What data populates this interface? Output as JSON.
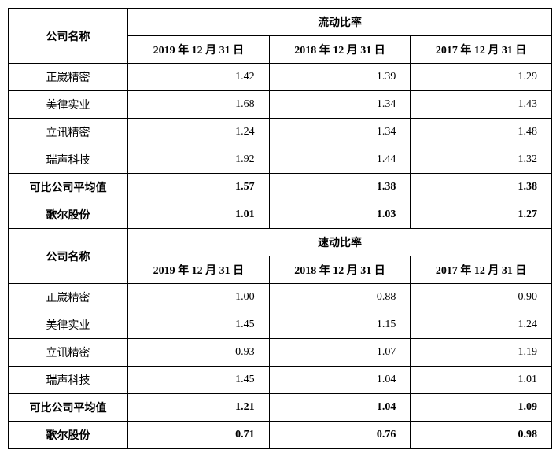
{
  "labels": {
    "company_name": "公司名称",
    "section1_title": "流动比率",
    "section2_title": "速动比率",
    "date1": "2019 年 12 月 31 日",
    "date2": "2018 年 12 月 31 日",
    "date3": "2017 年 12 月 31 日"
  },
  "section1": {
    "rows": [
      {
        "name": "正崴精密",
        "v1": "1.42",
        "v2": "1.39",
        "v3": "1.29",
        "bold": false
      },
      {
        "name": "美律实业",
        "v1": "1.68",
        "v2": "1.34",
        "v3": "1.43",
        "bold": false
      },
      {
        "name": "立讯精密",
        "v1": "1.24",
        "v2": "1.34",
        "v3": "1.48",
        "bold": false
      },
      {
        "name": "瑞声科技",
        "v1": "1.92",
        "v2": "1.44",
        "v3": "1.32",
        "bold": false
      },
      {
        "name": "可比公司平均值",
        "v1": "1.57",
        "v2": "1.38",
        "v3": "1.38",
        "bold": true
      },
      {
        "name": "歌尔股份",
        "v1": "1.01",
        "v2": "1.03",
        "v3": "1.27",
        "bold": true
      }
    ]
  },
  "section2": {
    "rows": [
      {
        "name": "正崴精密",
        "v1": "1.00",
        "v2": "0.88",
        "v3": "0.90",
        "bold": false
      },
      {
        "name": "美律实业",
        "v1": "1.45",
        "v2": "1.15",
        "v3": "1.24",
        "bold": false
      },
      {
        "name": "立讯精密",
        "v1": "0.93",
        "v2": "1.07",
        "v3": "1.19",
        "bold": false
      },
      {
        "name": "瑞声科技",
        "v1": "1.45",
        "v2": "1.04",
        "v3": "1.01",
        "bold": false
      },
      {
        "name": "可比公司平均值",
        "v1": "1.21",
        "v2": "1.04",
        "v3": "1.09",
        "bold": true
      },
      {
        "name": "歌尔股份",
        "v1": "0.71",
        "v2": "0.76",
        "v3": "0.98",
        "bold": true
      }
    ]
  },
  "style": {
    "border_color": "#000000",
    "background_color": "#ffffff",
    "text_color": "#000000",
    "font_family": "SimSun, 宋体, serif",
    "header_fontsize": 14,
    "cell_fontsize": 14,
    "col_widths_pct": [
      22,
      26,
      26,
      26
    ]
  }
}
